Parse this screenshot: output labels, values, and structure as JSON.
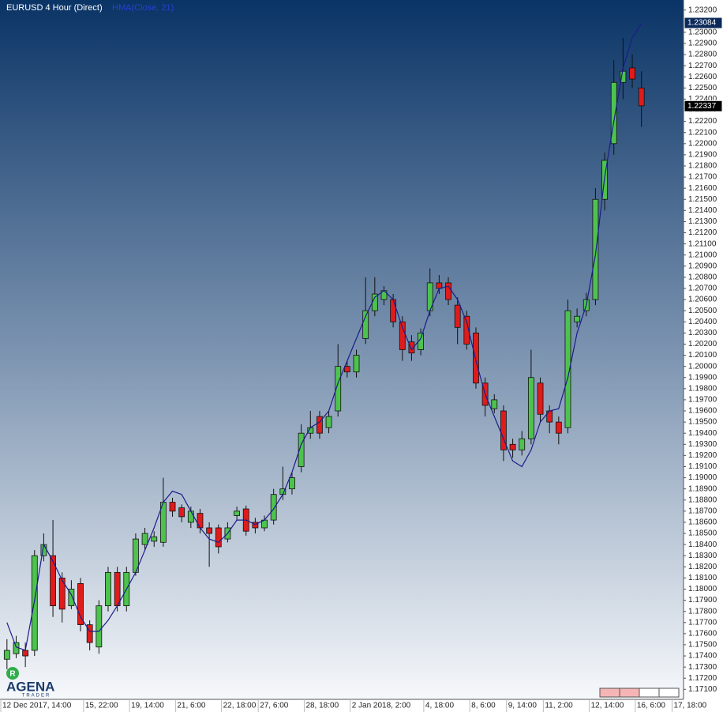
{
  "chart_data": {
    "type": "candlestick",
    "categories": [
      "12 Dec 2017, 14:00",
      null,
      null,
      null,
      null,
      null,
      null,
      null,
      null,
      "15, 22:00",
      null,
      null,
      null,
      null,
      "19, 14:00",
      null,
      null,
      null,
      null,
      "21, 6:00",
      null,
      null,
      null,
      null,
      "22, 18:00",
      null,
      null,
      null,
      "27, 6:00",
      null,
      null,
      null,
      null,
      "28, 18:00",
      null,
      null,
      null,
      null,
      "2 Jan 2018, 2:00",
      null,
      null,
      null,
      null,
      null,
      null,
      null,
      "4, 18:00",
      null,
      null,
      null,
      null,
      "8, 6:00",
      null,
      null,
      null,
      "9, 14:00",
      null,
      null,
      null,
      "11, 2:00",
      null,
      null,
      null,
      null,
      "12, 14:00",
      null,
      null,
      null,
      null,
      "16, 6:00",
      null,
      null,
      null,
      "17, 18:00"
    ],
    "series": [
      {
        "name": "EURUSD 4 Hour (Direct)",
        "up_color": "#4ec24e",
        "down_color": "#e01b1b",
        "open": [
          1.1737,
          1.1742,
          1.1745,
          1.1745,
          1.183,
          1.183,
          1.181,
          1.1785,
          1.1805,
          1.1768,
          1.1748,
          1.1785,
          1.1815,
          1.1785,
          1.1815,
          1.184,
          1.1843,
          1.1842,
          1.1878,
          1.1873,
          1.186,
          1.1868,
          1.1855,
          1.1855,
          1.1845,
          1.1866,
          1.1872,
          1.186,
          1.1855,
          1.1862,
          1.1885,
          1.189,
          1.191,
          1.194,
          1.1955,
          1.1945,
          1.196,
          1.2,
          1.1995,
          1.2025,
          1.205,
          1.206,
          1.206,
          1.204,
          1.2022,
          1.2015,
          1.205,
          1.2075,
          1.2075,
          1.2055,
          1.2045,
          1.203,
          1.1985,
          1.1962,
          1.196,
          1.193,
          1.1925,
          1.1935,
          1.1985,
          1.196,
          1.195,
          1.1945,
          1.204,
          1.205,
          1.206,
          1.215,
          1.22,
          1.2255,
          1.2268,
          1.225,
          null,
          null,
          null,
          null
        ],
        "high": [
          1.1755,
          1.1758,
          1.1752,
          1.1835,
          1.185,
          1.1862,
          1.1815,
          1.1808,
          1.181,
          1.1772,
          1.179,
          1.182,
          1.182,
          1.182,
          1.185,
          1.1855,
          1.1852,
          1.19,
          1.1882,
          1.1876,
          1.1874,
          1.1872,
          1.186,
          1.1858,
          1.186,
          1.1874,
          1.1875,
          1.1864,
          1.1866,
          1.189,
          1.191,
          1.1905,
          1.1948,
          1.196,
          1.196,
          1.196,
          1.202,
          1.2005,
          1.2015,
          1.208,
          1.208,
          1.2072,
          1.2065,
          1.2045,
          1.2028,
          1.2034,
          1.2088,
          1.2082,
          1.208,
          1.2062,
          1.205,
          1.2035,
          1.199,
          1.1975,
          1.1965,
          1.1935,
          1.1942,
          1.2015,
          1.199,
          1.1965,
          1.1955,
          1.206,
          1.2052,
          1.2066,
          1.216,
          1.2192,
          1.2275,
          1.2295,
          1.228,
          1.2265,
          null,
          null,
          null,
          null
        ],
        "low": [
          1.1728,
          1.1738,
          1.173,
          1.174,
          1.1825,
          1.1775,
          1.177,
          1.1782,
          1.1762,
          1.1745,
          1.1742,
          1.178,
          1.178,
          1.178,
          1.1812,
          1.1835,
          1.1838,
          1.1838,
          1.1865,
          1.186,
          1.1855,
          1.185,
          1.182,
          1.1832,
          1.1842,
          1.1862,
          1.1848,
          1.185,
          1.1852,
          1.1858,
          1.188,
          1.1885,
          1.1905,
          1.1935,
          1.1935,
          1.194,
          1.1955,
          1.199,
          1.199,
          1.202,
          1.2045,
          1.2055,
          1.2035,
          1.2005,
          1.2005,
          1.201,
          1.2045,
          1.2065,
          1.2055,
          1.202,
          1.2015,
          1.198,
          1.1955,
          1.1958,
          1.1915,
          1.1918,
          1.192,
          1.193,
          1.195,
          1.194,
          1.193,
          1.194,
          1.2035,
          1.2045,
          1.2055,
          1.214,
          1.219,
          1.224,
          1.225,
          1.2215,
          null,
          null,
          null,
          null
        ],
        "close": [
          1.1745,
          1.1752,
          1.174,
          1.183,
          1.184,
          1.1785,
          1.1782,
          1.18,
          1.1768,
          1.1752,
          1.1785,
          1.1815,
          1.1785,
          1.1815,
          1.1845,
          1.185,
          1.1847,
          1.1878,
          1.187,
          1.1865,
          1.187,
          1.1855,
          1.185,
          1.1838,
          1.1855,
          1.187,
          1.1852,
          1.1855,
          1.1862,
          1.1885,
          1.189,
          1.19,
          1.194,
          1.1945,
          1.194,
          1.1955,
          1.2,
          1.1995,
          1.201,
          1.205,
          1.2065,
          1.2068,
          1.204,
          1.2015,
          1.2012,
          1.203,
          1.2075,
          1.207,
          1.206,
          1.2035,
          1.202,
          1.1985,
          1.1965,
          1.197,
          1.1925,
          1.1925,
          1.1935,
          1.199,
          1.1957,
          1.195,
          1.194,
          1.205,
          1.2045,
          1.206,
          1.215,
          1.2185,
          1.2255,
          1.2265,
          1.2258,
          1.2234,
          null,
          null,
          null,
          null
        ]
      },
      {
        "name": "HMA(Close, 21)",
        "color": "#1c1c8a",
        "values": [
          1.177,
          1.1748,
          1.1745,
          1.179,
          1.184,
          1.1825,
          1.1808,
          1.1795,
          1.1775,
          1.1762,
          1.1762,
          1.1772,
          1.1785,
          1.18,
          1.1815,
          1.1835,
          1.1855,
          1.1878,
          1.1888,
          1.1885,
          1.187,
          1.1855,
          1.1845,
          1.1842,
          1.185,
          1.1862,
          1.1862,
          1.1858,
          1.1862,
          1.1872,
          1.1885,
          1.1905,
          1.193,
          1.1945,
          1.195,
          1.196,
          1.1985,
          1.2005,
          1.2025,
          1.2045,
          1.2062,
          1.2068,
          1.206,
          1.2035,
          1.2015,
          1.2025,
          1.205,
          1.207,
          1.2072,
          1.206,
          1.204,
          1.2005,
          1.1975,
          1.1955,
          1.1935,
          1.1915,
          1.191,
          1.1925,
          1.195,
          1.196,
          1.1962,
          1.199,
          1.203,
          1.2055,
          1.21,
          1.217,
          1.222,
          1.2268,
          1.2295,
          1.2308,
          null,
          null,
          null,
          null
        ]
      }
    ],
    "ylim": [
      1.1701,
      1.2329
    ],
    "yticks": [
      {
        "value": 1.171,
        "label": "1.17100"
      },
      {
        "value": 1.172,
        "label": "1.17200"
      },
      {
        "value": 1.173,
        "label": "1.17300"
      },
      {
        "value": 1.174,
        "label": "1.17400"
      },
      {
        "value": 1.175,
        "label": "1.17500"
      },
      {
        "value": 1.176,
        "label": "1.17600"
      },
      {
        "value": 1.177,
        "label": "1.17700"
      },
      {
        "value": 1.178,
        "label": "1.17800"
      },
      {
        "value": 1.179,
        "label": "1.17900"
      },
      {
        "value": 1.18,
        "label": "1.18000"
      },
      {
        "value": 1.181,
        "label": "1.18100"
      },
      {
        "value": 1.182,
        "label": "1.18200"
      },
      {
        "value": 1.183,
        "label": "1.18300"
      },
      {
        "value": 1.184,
        "label": "1.18400"
      },
      {
        "value": 1.185,
        "label": "1.18500"
      },
      {
        "value": 1.186,
        "label": "1.18600"
      },
      {
        "value": 1.187,
        "label": "1.18700"
      },
      {
        "value": 1.188,
        "label": "1.18800"
      },
      {
        "value": 1.189,
        "label": "1.18900"
      },
      {
        "value": 1.19,
        "label": "1.19000"
      },
      {
        "value": 1.191,
        "label": "1.19100"
      },
      {
        "value": 1.192,
        "label": "1.19200"
      },
      {
        "value": 1.193,
        "label": "1.19300"
      },
      {
        "value": 1.194,
        "label": "1.19400"
      },
      {
        "value": 1.195,
        "label": "1.19500"
      },
      {
        "value": 1.196,
        "label": "1.19600"
      },
      {
        "value": 1.197,
        "label": "1.19700"
      },
      {
        "value": 1.198,
        "label": "1.19800"
      },
      {
        "value": 1.199,
        "label": "1.19900"
      },
      {
        "value": 1.2,
        "label": "1.20000"
      },
      {
        "value": 1.201,
        "label": "1.20100"
      },
      {
        "value": 1.202,
        "label": "1.20200"
      },
      {
        "value": 1.203,
        "label": "1.20300"
      },
      {
        "value": 1.204,
        "label": "1.20400"
      },
      {
        "value": 1.205,
        "label": "1.20500"
      },
      {
        "value": 1.206,
        "label": "1.20600"
      },
      {
        "value": 1.207,
        "label": "1.20700"
      },
      {
        "value": 1.208,
        "label": "1.20800"
      },
      {
        "value": 1.209,
        "label": "1.20900"
      },
      {
        "value": 1.21,
        "label": "1.21000"
      },
      {
        "value": 1.211,
        "label": "1.21100"
      },
      {
        "value": 1.212,
        "label": "1.21200"
      },
      {
        "value": 1.213,
        "label": "1.21300"
      },
      {
        "value": 1.214,
        "label": "1.21400"
      },
      {
        "value": 1.215,
        "label": "1.21500"
      },
      {
        "value": 1.216,
        "label": "1.21600"
      },
      {
        "value": 1.217,
        "label": "1.21700"
      },
      {
        "value": 1.218,
        "label": "1.21800"
      },
      {
        "value": 1.219,
        "label": "1.21900"
      },
      {
        "value": 1.22,
        "label": "1.22000"
      },
      {
        "value": 1.221,
        "label": "1.22100"
      },
      {
        "value": 1.222,
        "label": "1.22200"
      },
      {
        "value": 1.223,
        "label": "1.22300"
      },
      {
        "value": 1.224,
        "label": "1.22400"
      },
      {
        "value": 1.225,
        "label": "1.22500"
      },
      {
        "value": 1.226,
        "label": "1.22600"
      },
      {
        "value": 1.227,
        "label": "1.22700"
      },
      {
        "value": 1.228,
        "label": "1.22800"
      },
      {
        "value": 1.229,
        "label": "1.22900"
      },
      {
        "value": 1.23,
        "label": "1.23000"
      },
      {
        "value": 1.231,
        "label": "1.23100"
      },
      {
        "value": 1.232,
        "label": "1.23200"
      }
    ],
    "price_markers": [
      {
        "value": 1.23084,
        "label": "1.23084",
        "color": "#0b2a5a"
      },
      {
        "value": 1.22337,
        "label": "1.22337",
        "color": "#000000"
      }
    ]
  },
  "logo": {
    "name": "AGENA",
    "tagline": "TRADER"
  }
}
